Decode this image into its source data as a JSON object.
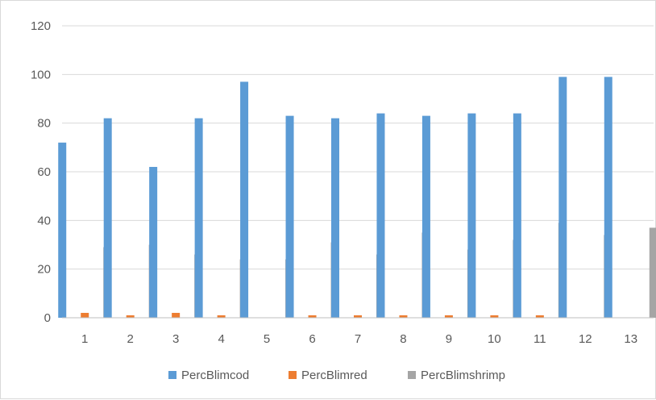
{
  "chart_data": {
    "type": "bar",
    "categories": [
      "1",
      "2",
      "3",
      "4",
      "5",
      "6",
      "7",
      "8",
      "9",
      "10",
      "11",
      "12",
      "13"
    ],
    "series": [
      {
        "name": "PercBlimcod",
        "color": "#5b9bd5",
        "values": [
          72,
          82,
          62,
          82,
          97,
          83,
          82,
          84,
          83,
          84,
          84,
          99,
          99
        ]
      },
      {
        "name": "PercBlimred",
        "color": "#ed7d31",
        "values": [
          2,
          1,
          2,
          1,
          0,
          1,
          1,
          1,
          1,
          1,
          1,
          0,
          0
        ]
      },
      {
        "name": "PercBlimshrimp",
        "color": "#a5a5a5",
        "values": [
          29,
          30,
          26,
          24,
          24,
          31,
          26,
          35,
          28,
          32,
          39,
          34,
          37
        ]
      }
    ],
    "yticks": [
      "0",
      "20",
      "40",
      "60",
      "80",
      "100",
      "120"
    ],
    "ylim": [
      0,
      120
    ],
    "grid": true,
    "legend_position": "bottom",
    "title": "",
    "xlabel": "",
    "ylabel": ""
  }
}
